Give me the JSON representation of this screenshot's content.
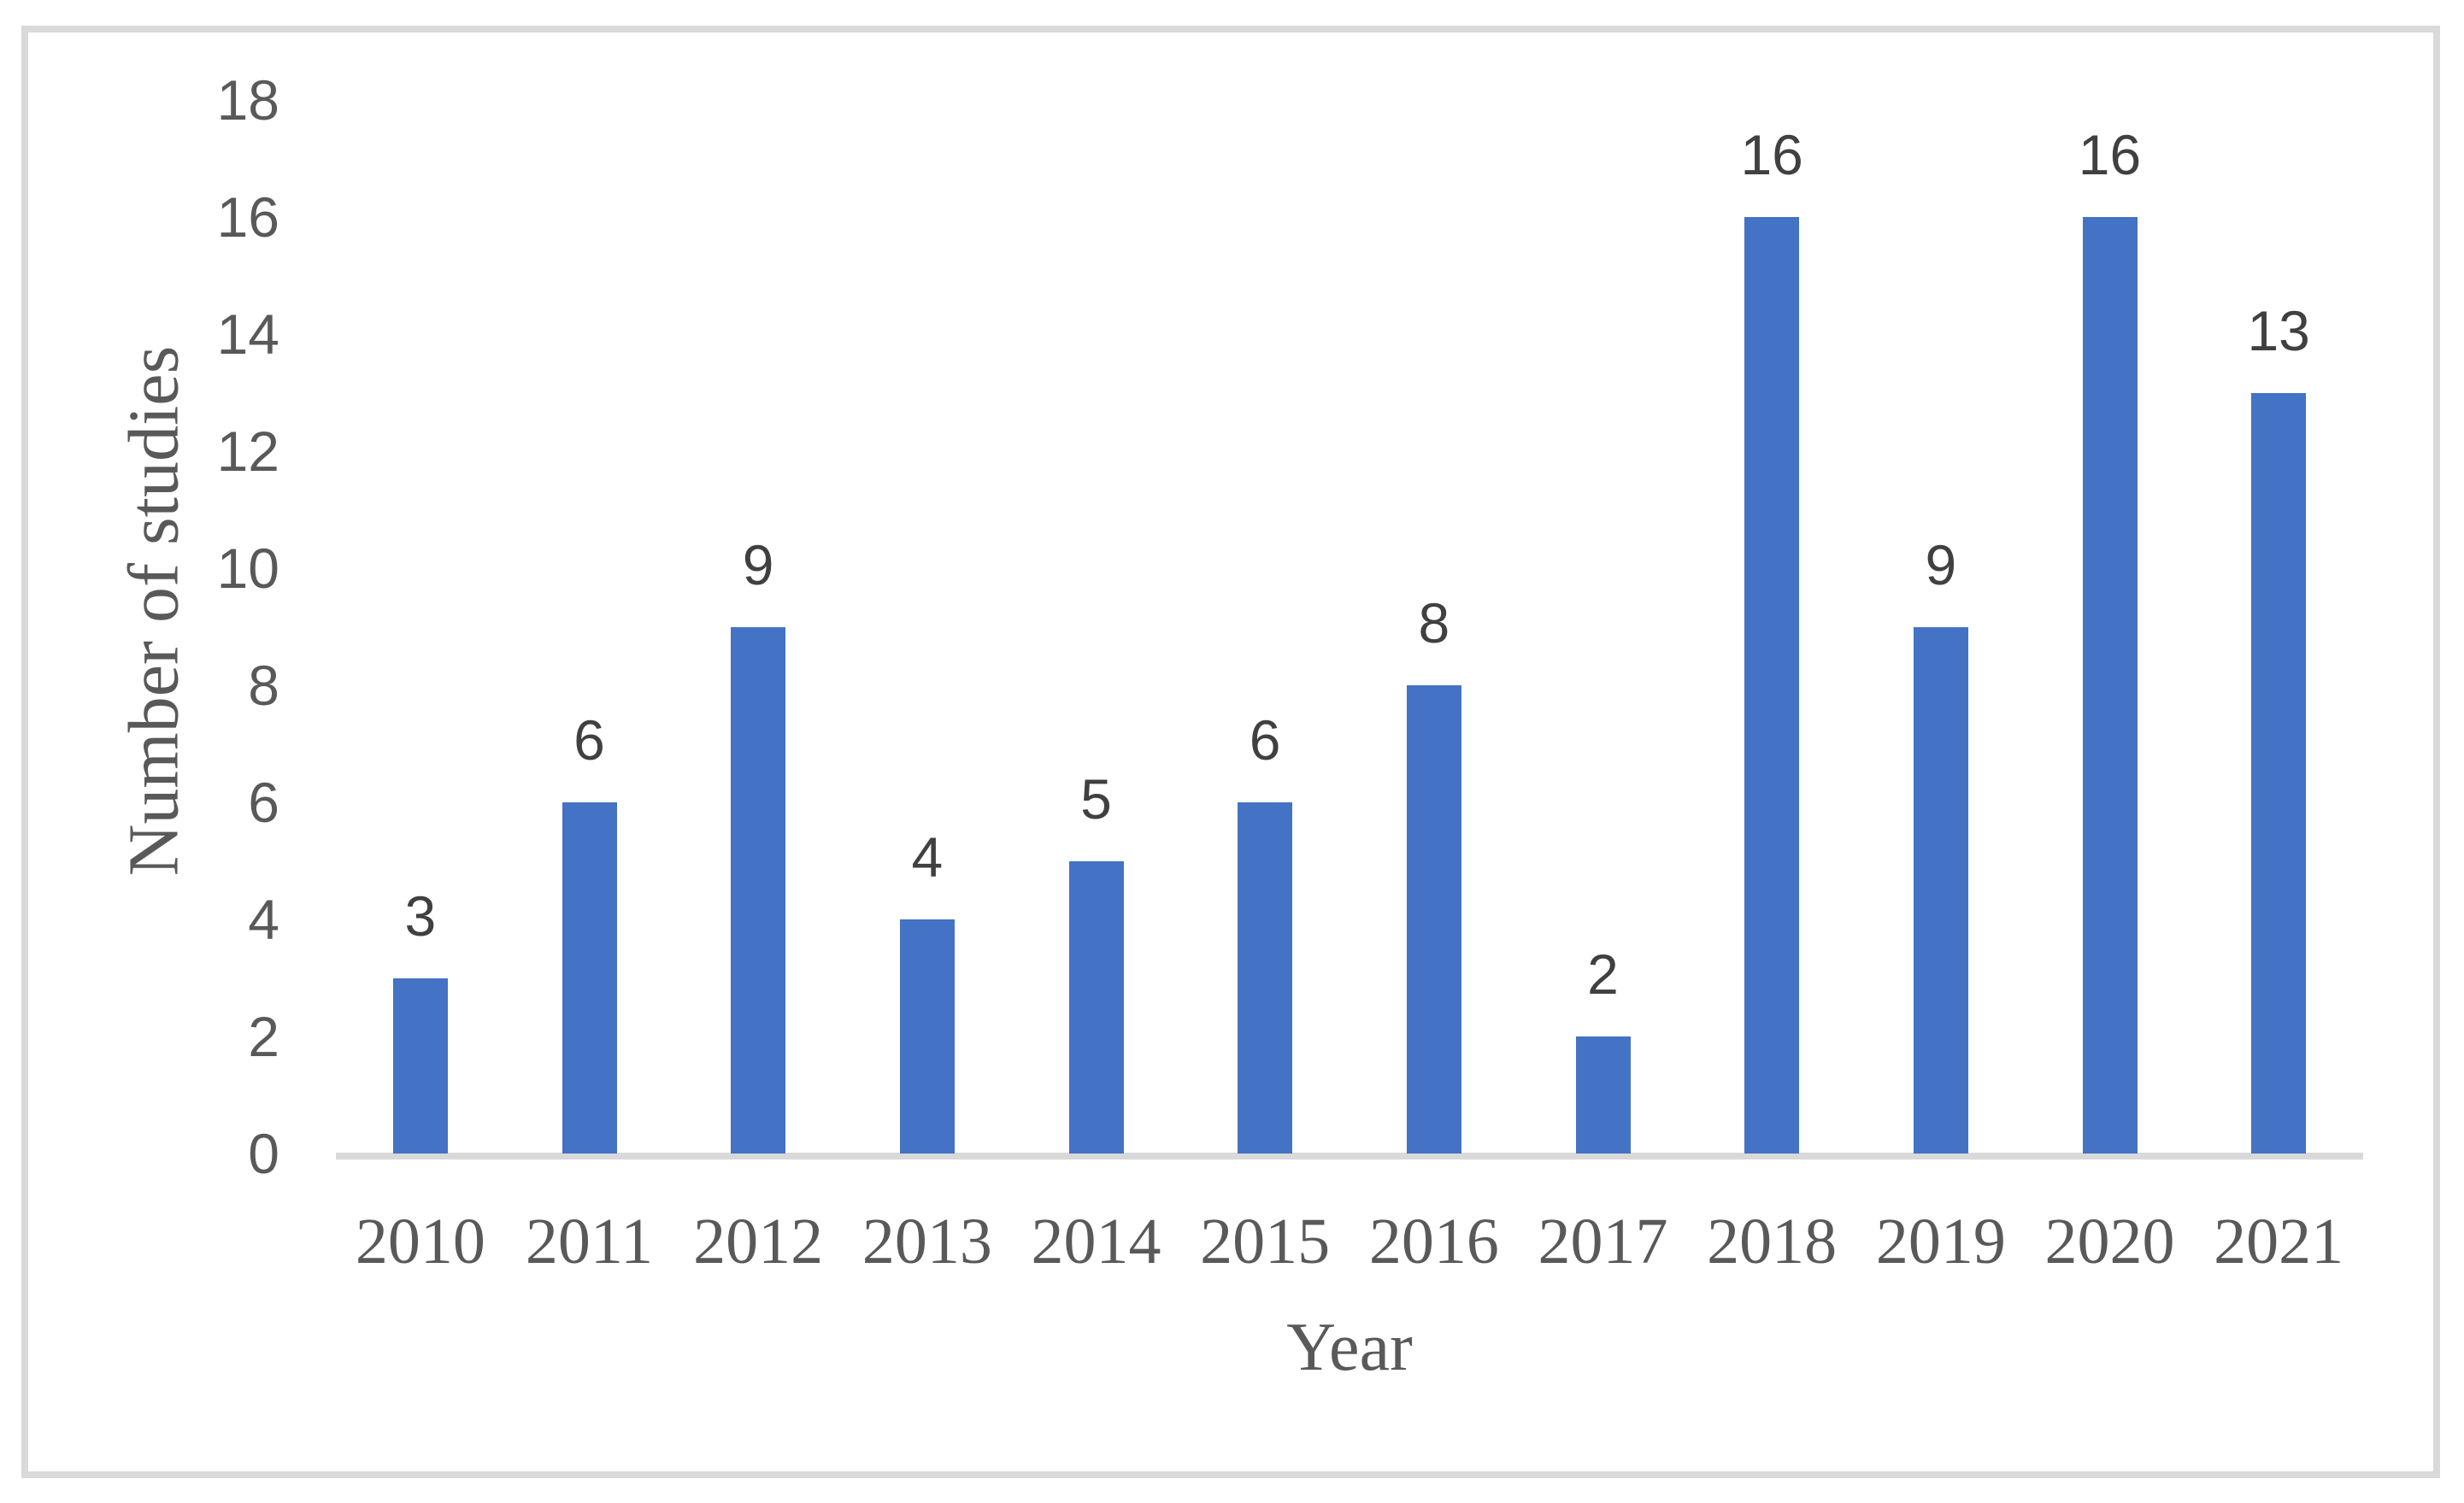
{
  "chart_data": {
    "type": "bar",
    "title": "",
    "categories": [
      "2010",
      "2011",
      "2012",
      "2013",
      "2014",
      "2015",
      "2016",
      "2017",
      "2018",
      "2019",
      "2020",
      "2021"
    ],
    "values": [
      3,
      6,
      9,
      4,
      5,
      6,
      8,
      2,
      16,
      9,
      16,
      13
    ],
    "data_labels": [
      "3",
      "6",
      "9",
      "4",
      "5",
      "6",
      "8",
      "2",
      "16",
      "9",
      "16",
      "13"
    ],
    "xlabel": "Year",
    "ylabel": "Number of studies",
    "ylim": [
      0,
      18
    ],
    "ytick_interval": 2,
    "ytick_labels": [
      "0",
      "2",
      "4",
      "6",
      "8",
      "10",
      "12",
      "14",
      "16",
      "18"
    ],
    "grid": false,
    "legend_position": "none",
    "colors": {
      "bar": "#4472C4",
      "axis_text": "#595959",
      "data_label_text": "#404040",
      "axis_line": "#D9D9D9",
      "figure_border": "#D9D9D9",
      "background": "#FFFFFF"
    }
  }
}
